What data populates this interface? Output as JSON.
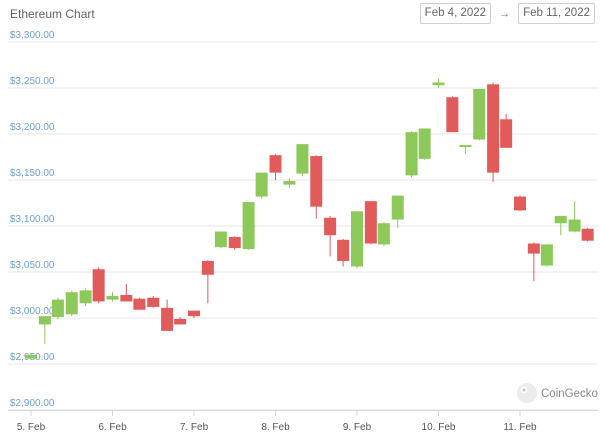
{
  "title": "Ethereum Chart",
  "date_range": {
    "from": "Feb 4, 2022",
    "separator": "→",
    "to": "Feb 11, 2022"
  },
  "watermark": "CoinGecko",
  "chart_data": {
    "type": "candlestick",
    "title": "Ethereum Chart",
    "xlabel": "",
    "ylabel": "",
    "ylim": [
      2900,
      3300
    ],
    "yticks": [
      "$2,900.00",
      "$2,950.00",
      "$3,000.00",
      "$3,050.00",
      "$3,100.00",
      "$3,150.00",
      "$3,200.00",
      "$3,250.00",
      "$3,300.00"
    ],
    "xticks": [
      "5. Feb",
      "6. Feb",
      "7. Feb",
      "8. Feb",
      "9. Feb",
      "10. Feb",
      "11. Feb"
    ],
    "grid": true,
    "colors": {
      "up": "#8dc85b",
      "down": "#e15b5b",
      "grid": "#e6e6e6",
      "tick": "#6f9fd1"
    },
    "candles": [
      {
        "t": 0,
        "open": 2956,
        "high": 2962,
        "low": 2956,
        "close": 2960
      },
      {
        "t": 0.17,
        "open": 2993,
        "high": 3000,
        "low": 2972,
        "close": 3002
      },
      {
        "t": 0.33,
        "open": 3001,
        "high": 3022,
        "low": 2999,
        "close": 3020
      },
      {
        "t": 0.5,
        "open": 3004,
        "high": 3030,
        "low": 3002,
        "close": 3028
      },
      {
        "t": 0.67,
        "open": 3016,
        "high": 3032,
        "low": 3013,
        "close": 3030
      },
      {
        "t": 0.83,
        "open": 3053,
        "high": 3055,
        "low": 3016,
        "close": 3018
      },
      {
        "t": 1.0,
        "open": 3020,
        "high": 3028,
        "low": 3018,
        "close": 3024
      },
      {
        "t": 1.17,
        "open": 3025,
        "high": 3037,
        "low": 3018,
        "close": 3018
      },
      {
        "t": 1.33,
        "open": 3021,
        "high": 3022,
        "low": 3009,
        "close": 3009
      },
      {
        "t": 1.5,
        "open": 3022,
        "high": 3024,
        "low": 3011,
        "close": 3012
      },
      {
        "t": 1.67,
        "open": 3011,
        "high": 3020,
        "low": 2986,
        "close": 2986
      },
      {
        "t": 1.83,
        "open": 2999,
        "high": 3001,
        "low": 2993,
        "close": 2993
      },
      {
        "t": 2.0,
        "open": 3008,
        "high": 3008,
        "low": 3000,
        "close": 3002
      },
      {
        "t": 2.17,
        "open": 3062,
        "high": 3063,
        "low": 3016,
        "close": 3047
      },
      {
        "t": 2.33,
        "open": 3077,
        "high": 3094,
        "low": 3076,
        "close": 3094
      },
      {
        "t": 2.5,
        "open": 3088,
        "high": 3089,
        "low": 3074,
        "close": 3076
      },
      {
        "t": 2.67,
        "open": 3075,
        "high": 3125,
        "low": 3074,
        "close": 3126
      },
      {
        "t": 2.83,
        "open": 3132,
        "high": 3158,
        "low": 3130,
        "close": 3158
      },
      {
        "t": 3.0,
        "open": 3177,
        "high": 3178,
        "low": 3150,
        "close": 3158
      },
      {
        "t": 3.17,
        "open": 3145,
        "high": 3152,
        "low": 3141,
        "close": 3149
      },
      {
        "t": 3.33,
        "open": 3157,
        "high": 3189,
        "low": 3154,
        "close": 3189
      },
      {
        "t": 3.5,
        "open": 3176,
        "high": 3177,
        "low": 3108,
        "close": 3121
      },
      {
        "t": 3.67,
        "open": 3109,
        "high": 3111,
        "low": 3067,
        "close": 3090
      },
      {
        "t": 3.83,
        "open": 3085,
        "high": 3086,
        "low": 3056,
        "close": 3062
      },
      {
        "t": 4.0,
        "open": 3056,
        "high": 3116,
        "low": 3054,
        "close": 3116
      },
      {
        "t": 4.17,
        "open": 3127,
        "high": 3127,
        "low": 3080,
        "close": 3081
      },
      {
        "t": 4.33,
        "open": 3080,
        "high": 3104,
        "low": 3078,
        "close": 3103
      },
      {
        "t": 4.5,
        "open": 3107,
        "high": 3133,
        "low": 3098,
        "close": 3133
      },
      {
        "t": 4.67,
        "open": 3155,
        "high": 3203,
        "low": 3153,
        "close": 3202
      },
      {
        "t": 4.83,
        "open": 3173,
        "high": 3205,
        "low": 3172,
        "close": 3206
      },
      {
        "t": 5.0,
        "open": 3253,
        "high": 3260,
        "low": 3250,
        "close": 3256
      },
      {
        "t": 5.17,
        "open": 3240,
        "high": 3241,
        "low": 3202,
        "close": 3202
      },
      {
        "t": 5.33,
        "open": 3186,
        "high": 3187,
        "low": 3178,
        "close": 3188
      },
      {
        "t": 5.5,
        "open": 3194,
        "high": 3249,
        "low": 3193,
        "close": 3249
      },
      {
        "t": 5.67,
        "open": 3254,
        "high": 3256,
        "low": 3148,
        "close": 3158
      },
      {
        "t": 5.83,
        "open": 3216,
        "high": 3222,
        "low": 3185,
        "close": 3185
      },
      {
        "t": 6.0,
        "open": 3132,
        "high": 3133,
        "low": 3116,
        "close": 3117
      },
      {
        "t": 6.17,
        "open": 3081,
        "high": 3082,
        "low": 3040,
        "close": 3070
      },
      {
        "t": 6.33,
        "open": 3057,
        "high": 3080,
        "low": 3056,
        "close": 3080
      },
      {
        "t": 6.5,
        "open": 3103,
        "high": 3110,
        "low": 3090,
        "close": 3111
      },
      {
        "t": 6.67,
        "open": 3094,
        "high": 3127,
        "low": 3093,
        "close": 3107
      },
      {
        "t": 6.83,
        "open": 3097,
        "high": 3098,
        "low": 3083,
        "close": 3084
      }
    ]
  }
}
